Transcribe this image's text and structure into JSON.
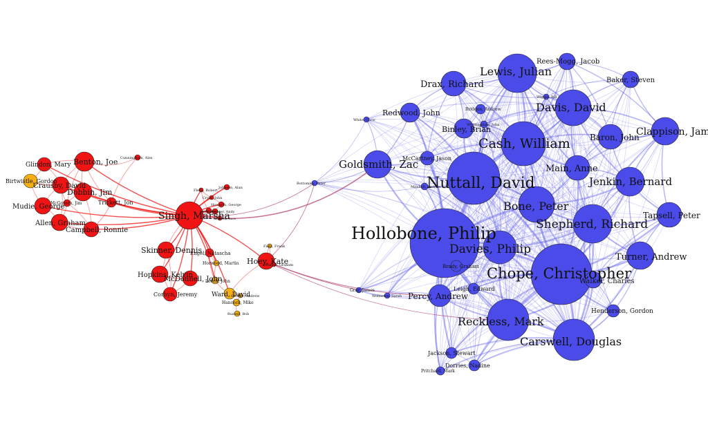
{
  "colors": {
    "left_cluster": "#f01414",
    "minor_left": "#f3ae12",
    "right_cluster": "#4b4bea",
    "right_edge": "#5a5ae8",
    "bridge_edge": "#b03a6a",
    "left_edge": "#ef5a5a",
    "stroke": "#222222"
  },
  "nodes": [
    {
      "id": "hollobone",
      "label": "Hollobone, Philip",
      "group": "right"
    },
    {
      "id": "chope",
      "label": "Chope, Christopher",
      "group": "right"
    },
    {
      "id": "nuttall",
      "label": "Nuttall, David",
      "group": "right"
    },
    {
      "id": "cash",
      "label": "Cash, William",
      "group": "right"
    },
    {
      "id": "reckless",
      "label": "Reckless, Mark",
      "group": "right"
    },
    {
      "id": "lewis",
      "label": "Lewis, Julian",
      "group": "right"
    },
    {
      "id": "carswell",
      "label": "Carswell, Douglas",
      "group": "right"
    },
    {
      "id": "shepherd",
      "label": "Shepherd, Richard",
      "group": "right"
    },
    {
      "id": "davisd",
      "label": "Davis, David",
      "group": "right"
    },
    {
      "id": "bone",
      "label": "Bone, Peter",
      "group": "right"
    },
    {
      "id": "daviesp",
      "label": "Davies, Philip",
      "group": "right"
    },
    {
      "id": "goldsmith",
      "label": "Goldsmith, Zac",
      "group": "right"
    },
    {
      "id": "jenkin",
      "label": "Jenkin, Bernard",
      "group": "right"
    },
    {
      "id": "clappison",
      "label": "Clappison, James",
      "group": "right"
    },
    {
      "id": "main",
      "label": "Main, Anne",
      "group": "right"
    },
    {
      "id": "turner",
      "label": "Turner, Andrew",
      "group": "right"
    },
    {
      "id": "drax",
      "label": "Drax, Richard",
      "group": "right"
    },
    {
      "id": "baron",
      "label": "Baron, John",
      "group": "right"
    },
    {
      "id": "percy",
      "label": "Percy, Andrew",
      "group": "right"
    },
    {
      "id": "tapsell",
      "label": "Tapsell, Peter",
      "group": "right"
    },
    {
      "id": "binley",
      "label": "Binley, Brian",
      "group": "right"
    },
    {
      "id": "redwood",
      "label": "Redwood, John",
      "group": "right"
    },
    {
      "id": "reesmogg",
      "label": "Rees-Mogg, Jacob",
      "group": "right"
    },
    {
      "id": "baker",
      "label": "Baker, Steven",
      "group": "right"
    },
    {
      "id": "walker",
      "label": "Walker, Charles",
      "group": "right"
    },
    {
      "id": "henderson",
      "label": "Henderson, Gordon",
      "group": "right"
    },
    {
      "id": "jackson",
      "label": "Jackson, Stewart",
      "group": "right"
    },
    {
      "id": "dorries",
      "label": "Dorries, Nadine",
      "group": "right"
    },
    {
      "id": "leigh",
      "label": "Leigh, Edward",
      "group": "right"
    },
    {
      "id": "mccartney",
      "label": "McCartney, Jason",
      "group": "right"
    },
    {
      "id": "brady",
      "label": "Brady, Graham",
      "group": "right"
    },
    {
      "id": "pritchard",
      "label": "Pritchard, Mark",
      "group": "right"
    },
    {
      "id": "gray",
      "label": "Gray, James",
      "group": "right"
    },
    {
      "id": "wollaston",
      "label": "Wollaston, Sarah",
      "group": "right"
    },
    {
      "id": "white",
      "label": "White, Chris",
      "group": "right"
    },
    {
      "id": "bottomley",
      "label": "Bottomley, Peter",
      "group": "right"
    },
    {
      "id": "bridgen",
      "label": "Bridgen, Andrew",
      "group": "right"
    },
    {
      "id": "whittingdale",
      "label": "Whittingdale, John",
      "group": "right"
    },
    {
      "id": "wiggin",
      "label": "Wiggin, Bill",
      "group": "right"
    },
    {
      "id": "mitchell",
      "label": "Mitchell, Andrew",
      "group": "right"
    },
    {
      "id": "singh",
      "label": "Singh, Marsha",
      "group": "left"
    },
    {
      "id": "hoey",
      "label": "Hoey, Kate",
      "group": "left"
    },
    {
      "id": "benton",
      "label": "Benton, Joe",
      "group": "left"
    },
    {
      "id": "dobbin",
      "label": "Dobbin, Jim",
      "group": "left"
    },
    {
      "id": "crausby",
      "label": "Crausby, David",
      "group": "left"
    },
    {
      "id": "mudie",
      "label": "Mudie, George",
      "group": "left"
    },
    {
      "id": "allen",
      "label": "Allen, Graham",
      "group": "left"
    },
    {
      "id": "campbell",
      "label": "Campbell, Ronnie",
      "group": "left"
    },
    {
      "id": "skinner",
      "label": "Skinner, Dennis",
      "group": "left"
    },
    {
      "id": "hopkins",
      "label": "Hopkins, Kelvin",
      "group": "left"
    },
    {
      "id": "mcdonnell",
      "label": "McDonnell, John",
      "group": "left"
    },
    {
      "id": "corbyn",
      "label": "Corbyn, Jeremy",
      "group": "left"
    },
    {
      "id": "glindon",
      "label": "Glindon, Mary",
      "group": "left"
    },
    {
      "id": "trickett",
      "label": "Trickett, Jon",
      "group": "left"
    },
    {
      "id": "cunningham",
      "label": "Cunningham, Alex",
      "group": "left"
    },
    {
      "id": "mcgovern",
      "label": "McGovern, Jim",
      "group": "left"
    },
    {
      "id": "engel",
      "label": "Engel, Natascha",
      "group": "left"
    },
    {
      "id": "meale",
      "label": "Meale, Alan",
      "group": "left"
    },
    {
      "id": "flello",
      "label": "Flello, Robert",
      "group": "left"
    },
    {
      "id": "johnson",
      "label": "Johnson, Alan",
      "group": "left"
    },
    {
      "id": "mcdonnellj2",
      "label": "Cryer, John",
      "group": "left"
    },
    {
      "id": "howarth",
      "label": "Howarth, George",
      "group": "left"
    },
    {
      "id": "slaughter",
      "label": "Slaughter, Andy",
      "group": "left"
    },
    {
      "id": "anderson",
      "label": "Anderson, Dave",
      "group": "left"
    },
    {
      "id": "stringer",
      "label": "Stringer, Graham",
      "group": "left"
    },
    {
      "id": "birtwistle",
      "label": "Birtwistle, Gordon",
      "group": "minor"
    },
    {
      "id": "ward",
      "label": "Ward, David",
      "group": "minor"
    },
    {
      "id": "leech",
      "label": "Leech, John",
      "group": "minor"
    },
    {
      "id": "hancock",
      "label": "Hancock, Mike",
      "group": "minor"
    },
    {
      "id": "russell",
      "label": "Russell, Bob",
      "group": "minor"
    },
    {
      "id": "horwood",
      "label": "Horwood, Martin",
      "group": "minor"
    },
    {
      "id": "field",
      "label": "Field, Frank",
      "group": "minor"
    },
    {
      "id": "george",
      "label": "George, Andrew",
      "group": "minor"
    }
  ]
}
